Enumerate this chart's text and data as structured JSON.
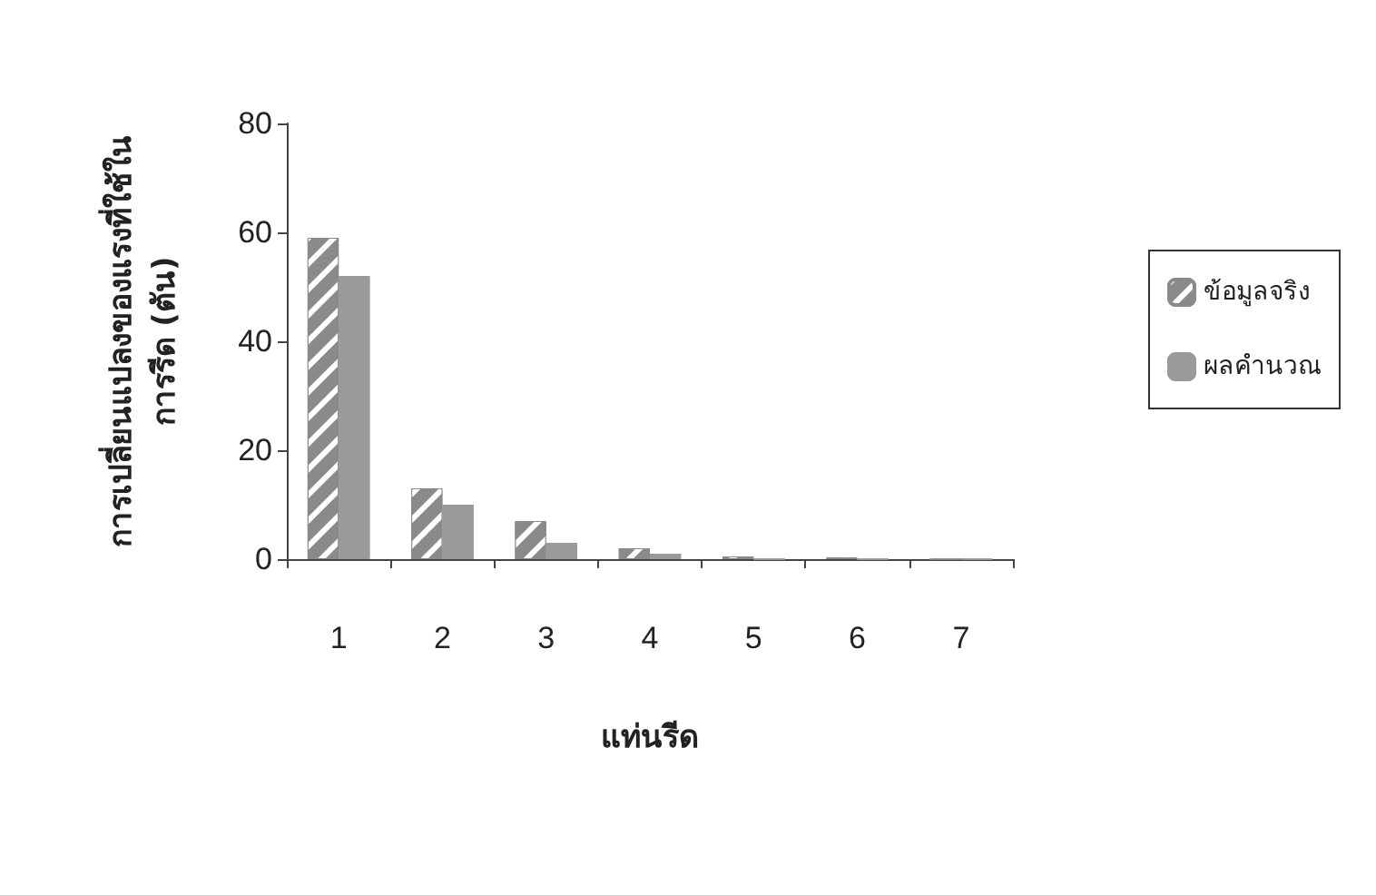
{
  "chart_data": {
    "type": "bar",
    "ylabel": "การเปลี่ยนแปลงของแรงที่ใช้ใน\nการรีด (ตัน)",
    "xlabel": "แท่นรีด",
    "categories": [
      "1",
      "2",
      "3",
      "4",
      "5",
      "6",
      "7"
    ],
    "series": [
      {
        "name": "ข้อมูลจริง",
        "color": "#8a8a8a",
        "values": [
          59,
          13,
          7,
          2,
          0.5,
          0.3,
          0
        ]
      },
      {
        "name": "ผลคำนวณ",
        "color": "#9a9a9a",
        "values": [
          52,
          10,
          3,
          1,
          0,
          0,
          0
        ]
      }
    ],
    "ylim": [
      0,
      80
    ],
    "yticks": [
      0,
      20,
      40,
      60,
      80
    ],
    "grid": false,
    "legend": "right"
  }
}
